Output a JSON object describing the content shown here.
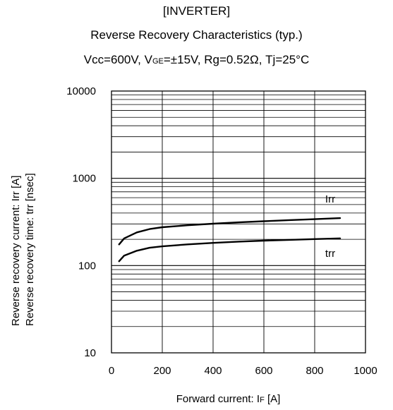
{
  "title": {
    "line1": "[INVERTER]",
    "line2": "Reverse Recovery Characteristics (typ.)",
    "line3_a": "Vcc=600V, V",
    "line3_sub": "GE",
    "line3_b": "=±15V, Rg=0.52Ω, Tj=25°C"
  },
  "axes": {
    "ylabel_line1": "Reverse recovery current: Irr [A]",
    "ylabel_line2": "Reverse recovery time: trr [nsec]",
    "xlabel_a": "Forward current: I",
    "xlabel_sub": "F",
    "xlabel_b": "  [A]"
  },
  "chart_data": {
    "type": "line",
    "x_scale": "linear",
    "y_scale": "log",
    "xlim": [
      0,
      1000
    ],
    "ylim": [
      10,
      10000
    ],
    "x_ticks": [
      0,
      200,
      400,
      600,
      800,
      1000
    ],
    "y_ticks": [
      10,
      100,
      1000,
      10000
    ],
    "grid": true,
    "series": [
      {
        "name": "Irr",
        "x": [
          30,
          50,
          100,
          150,
          200,
          300,
          400,
          500,
          600,
          700,
          800,
          900
        ],
        "y": [
          175,
          205,
          240,
          262,
          275,
          290,
          302,
          313,
          322,
          332,
          340,
          350
        ]
      },
      {
        "name": "trr",
        "x": [
          30,
          50,
          100,
          150,
          200,
          300,
          400,
          500,
          600,
          700,
          800,
          900
        ],
        "y": [
          112,
          130,
          148,
          160,
          166,
          175,
          182,
          188,
          193,
          197,
          201,
          205
        ]
      }
    ]
  }
}
